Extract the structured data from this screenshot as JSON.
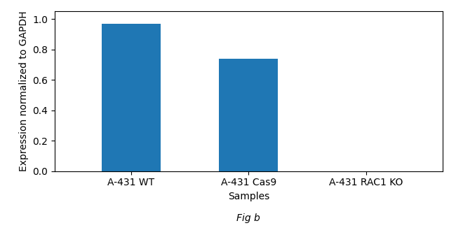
{
  "chart_data": {
    "type": "bar",
    "title": "Fig b",
    "categories": [
      "A-431 WT",
      "A-431 Cas9",
      "A-431 RAC1 KO"
    ],
    "values": [
      0.97,
      0.74,
      0.0
    ],
    "xlabel": "Samples",
    "ylabel": "Expression normalized to GAPDH",
    "ylim": [
      0,
      1.05
    ],
    "yticks": [
      {
        "value": 0,
        "label": "0.0"
      },
      0.2,
      0.4,
      0.6,
      0.8,
      1.0
    ],
    "grid": false
  }
}
